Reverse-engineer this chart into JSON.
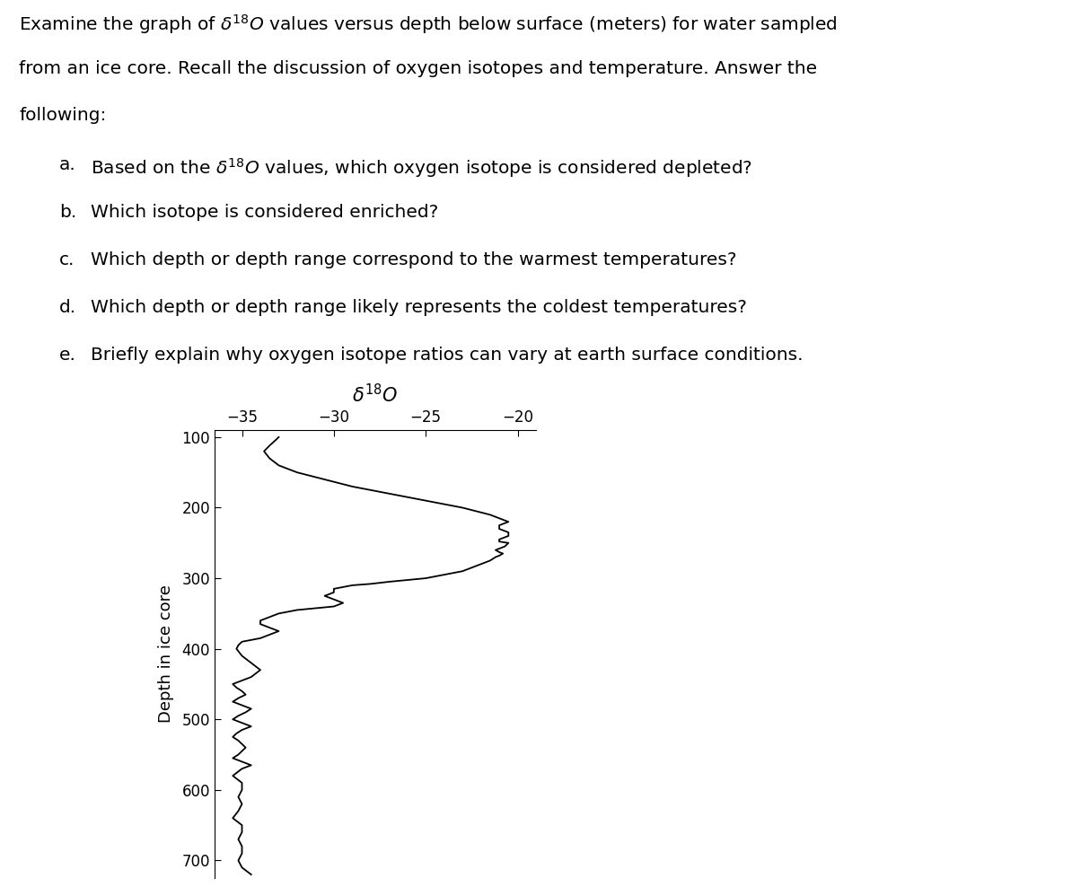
{
  "xlabel": "δ¹⁸O",
  "ylabel": "Depth in ice core",
  "xlim": [
    -36.5,
    -19
  ],
  "ylim": [
    725,
    90
  ],
  "xticks": [
    -35,
    -30,
    -25,
    -20
  ],
  "yticks": [
    100,
    200,
    300,
    400,
    500,
    600,
    700
  ],
  "depth": [
    100,
    105,
    112,
    120,
    130,
    140,
    150,
    160,
    170,
    180,
    190,
    200,
    210,
    215,
    220,
    225,
    230,
    235,
    240,
    245,
    248,
    250,
    255,
    258,
    260,
    263,
    265,
    268,
    270,
    275,
    280,
    285,
    290,
    295,
    300,
    305,
    308,
    310,
    315,
    320,
    325,
    330,
    335,
    340,
    345,
    350,
    355,
    360,
    365,
    370,
    375,
    380,
    385,
    390,
    395,
    400,
    410,
    420,
    430,
    440,
    445,
    450,
    455,
    460,
    465,
    470,
    475,
    480,
    485,
    490,
    495,
    500,
    505,
    510,
    515,
    520,
    525,
    530,
    535,
    540,
    545,
    550,
    555,
    560,
    565,
    570,
    580,
    590,
    600,
    610,
    620,
    630,
    640,
    650,
    660,
    670,
    680,
    690,
    700,
    710,
    720
  ],
  "delta18O": [
    -33,
    -33.2,
    -33.5,
    -33.8,
    -33.5,
    -33,
    -32,
    -30.5,
    -29,
    -27,
    -25,
    -23,
    -21.5,
    -21,
    -20.5,
    -21,
    -21,
    -20.5,
    -20.5,
    -21,
    -21,
    -20.5,
    -20.7,
    -21,
    -21.2,
    -21,
    -20.8,
    -21,
    -21.2,
    -21.5,
    -22,
    -22.5,
    -23,
    -24,
    -25,
    -27,
    -28,
    -29,
    -30,
    -30,
    -30.5,
    -30,
    -29.5,
    -30,
    -32,
    -33,
    -33.5,
    -34,
    -34,
    -33.5,
    -33,
    -33.5,
    -34,
    -35,
    -35.2,
    -35.3,
    -35,
    -34.5,
    -34,
    -34.5,
    -35,
    -35.5,
    -35.3,
    -35,
    -34.8,
    -35.2,
    -35.5,
    -35,
    -34.5,
    -34.8,
    -35.2,
    -35.5,
    -35,
    -34.5,
    -35,
    -35.3,
    -35.5,
    -35.2,
    -35,
    -34.8,
    -35,
    -35.2,
    -35.5,
    -35,
    -34.5,
    -35,
    -35.5,
    -35,
    -35,
    -35.2,
    -35,
    -35.2,
    -35.5,
    -35,
    -35,
    -35.2,
    -35,
    -35,
    -35.2,
    -35,
    -34.5
  ],
  "background_color": "#ffffff",
  "line_color": "#000000",
  "text_color": "#000000",
  "figsize": [
    11.94,
    9.98
  ],
  "dpi": 100,
  "title_lines": [
    "Examine the graph of $\\delta^{18}O$ values versus depth below surface (meters) for water sampled",
    "from an ice core. Recall the discussion of oxygen isotopes and temperature. Answer the",
    "following:"
  ],
  "list_items": [
    [
      "a.",
      "Based on the $\\delta^{18}O$ values, which oxygen isotope is considered depleted?"
    ],
    [
      "b.",
      "Which isotope is considered enriched?"
    ],
    [
      "c.",
      "Which depth or depth range correspond to the warmest temperatures?"
    ],
    [
      "d.",
      "Which depth or depth range likely represents the coldest temperatures?"
    ],
    [
      "e.",
      "Briefly explain why oxygen isotope ratios can vary at earth surface conditions."
    ]
  ]
}
